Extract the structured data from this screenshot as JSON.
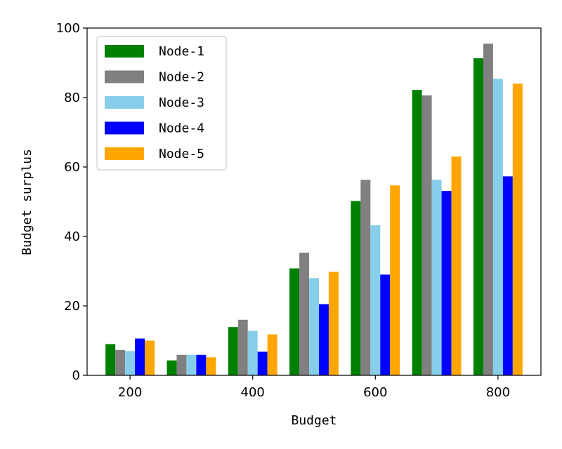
{
  "chart_data": {
    "type": "bar",
    "title": "",
    "xlabel": "Budget",
    "ylabel": "Budget surplus",
    "x": [
      200,
      300,
      400,
      500,
      600,
      700,
      800
    ],
    "xticks": [
      200,
      400,
      600,
      800
    ],
    "xlim": [
      130,
      870
    ],
    "ylim": [
      0,
      100
    ],
    "yticks": [
      0,
      20,
      40,
      60,
      80,
      100
    ],
    "grid": false,
    "legend_position": "top-left",
    "series": [
      {
        "name": "Node-1",
        "color": "#008000",
        "values": [
          9.0,
          4.3,
          13.9,
          30.8,
          50.2,
          82.2,
          91.3
        ]
      },
      {
        "name": "Node-2",
        "color": "#808080",
        "values": [
          7.3,
          5.9,
          16.0,
          35.3,
          56.3,
          80.6,
          95.5
        ]
      },
      {
        "name": "Node-3",
        "color": "#87CEEB",
        "values": [
          7.0,
          5.9,
          12.8,
          28.0,
          43.2,
          56.3,
          85.4
        ]
      },
      {
        "name": "Node-4",
        "color": "#0000FF",
        "values": [
          10.6,
          5.9,
          6.8,
          20.5,
          29.0,
          53.1,
          57.3
        ]
      },
      {
        "name": "Node-5",
        "color": "#FFA500",
        "values": [
          10.0,
          5.2,
          11.8,
          29.8,
          54.7,
          63.0,
          84.0
        ]
      }
    ]
  }
}
